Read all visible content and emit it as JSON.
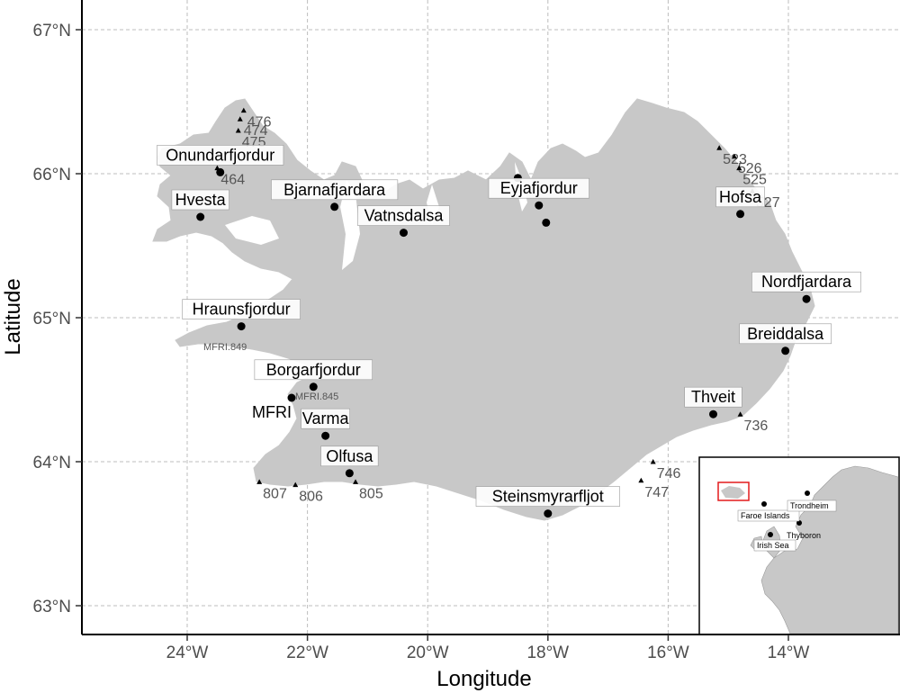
{
  "axes": {
    "xlabel": "Longitude",
    "ylabel": "Latitude",
    "xticks": [
      "24°W",
      "22°W",
      "20°W",
      "18°W",
      "16°W",
      "14°W"
    ],
    "yticks": [
      "67°N",
      "66°N",
      "65°N",
      "64°N",
      "63°N"
    ],
    "xlim": [
      -25.75,
      -12.3
    ],
    "ylim": [
      62.8,
      67.2
    ]
  },
  "sites": [
    {
      "name": "Onundarfjordur",
      "lon": -23.45,
      "lat": 66.01
    },
    {
      "name": "Hvesta",
      "lon": -23.78,
      "lat": 65.7
    },
    {
      "name": "Bjarnafjardara",
      "lon": -21.55,
      "lat": 65.77
    },
    {
      "name": "Vatnsdalsa",
      "lon": -20.4,
      "lat": 65.59
    },
    {
      "name": "Eyjafjordur",
      "lon": -18.15,
      "lat": 65.78
    },
    {
      "name": "Hofsa",
      "lon": -14.8,
      "lat": 65.72
    },
    {
      "name": "Nordfjardara",
      "lon": -13.7,
      "lat": 65.13
    },
    {
      "name": "Breiddalsa",
      "lon": -14.05,
      "lat": 64.77
    },
    {
      "name": "Hraunsfjordur",
      "lon": -23.1,
      "lat": 64.94
    },
    {
      "name": "Borgarfjordur",
      "lon": -21.9,
      "lat": 64.52
    },
    {
      "name": "Varma",
      "lon": -21.7,
      "lat": 64.18
    },
    {
      "name": "Olfusa",
      "lon": -21.3,
      "lat": 63.92
    },
    {
      "name": "Steinsmyrarfljot",
      "lon": -18.0,
      "lat": 63.64
    },
    {
      "name": "Thveit",
      "lon": -15.25,
      "lat": 64.33
    }
  ],
  "extra_points": [
    {
      "lon": -18.5,
      "lat": 65.97
    },
    {
      "lon": -18.03,
      "lat": 65.66
    }
  ],
  "stations": [
    {
      "label": "476",
      "lon": -23.06,
      "lat": 66.44
    },
    {
      "label": "474",
      "lon": -23.12,
      "lat": 66.38
    },
    {
      "label": "475",
      "lon": -23.15,
      "lat": 66.3
    },
    {
      "label": "464",
      "lon": -23.5,
      "lat": 66.04
    },
    {
      "label": "523",
      "lon": -15.15,
      "lat": 66.18
    },
    {
      "label": "526",
      "lon": -14.9,
      "lat": 66.12
    },
    {
      "label": "525",
      "lon": -14.82,
      "lat": 66.04
    },
    {
      "label": "527",
      "lon": -14.6,
      "lat": 65.88
    },
    {
      "label": "736",
      "lon": -14.8,
      "lat": 64.33
    },
    {
      "label": "746",
      "lon": -16.25,
      "lat": 64.0
    },
    {
      "label": "747",
      "lon": -16.45,
      "lat": 63.87
    },
    {
      "label": "807",
      "lon": -22.8,
      "lat": 63.86
    },
    {
      "label": "806",
      "lon": -22.2,
      "lat": 63.84
    },
    {
      "label": "805",
      "lon": -21.2,
      "lat": 63.86
    }
  ],
  "small_labels": [
    "MFRI.849",
    "MFRI.845"
  ],
  "mfri_label": "MFRI",
  "inset": {
    "labels": [
      "Faroe Islands",
      "Trondheim",
      "Thyboron",
      "Irish Sea"
    ]
  },
  "colors": {
    "land": "#c8c8c8",
    "grid": "#bdbdbd",
    "inset_box": "#e31a1c"
  }
}
